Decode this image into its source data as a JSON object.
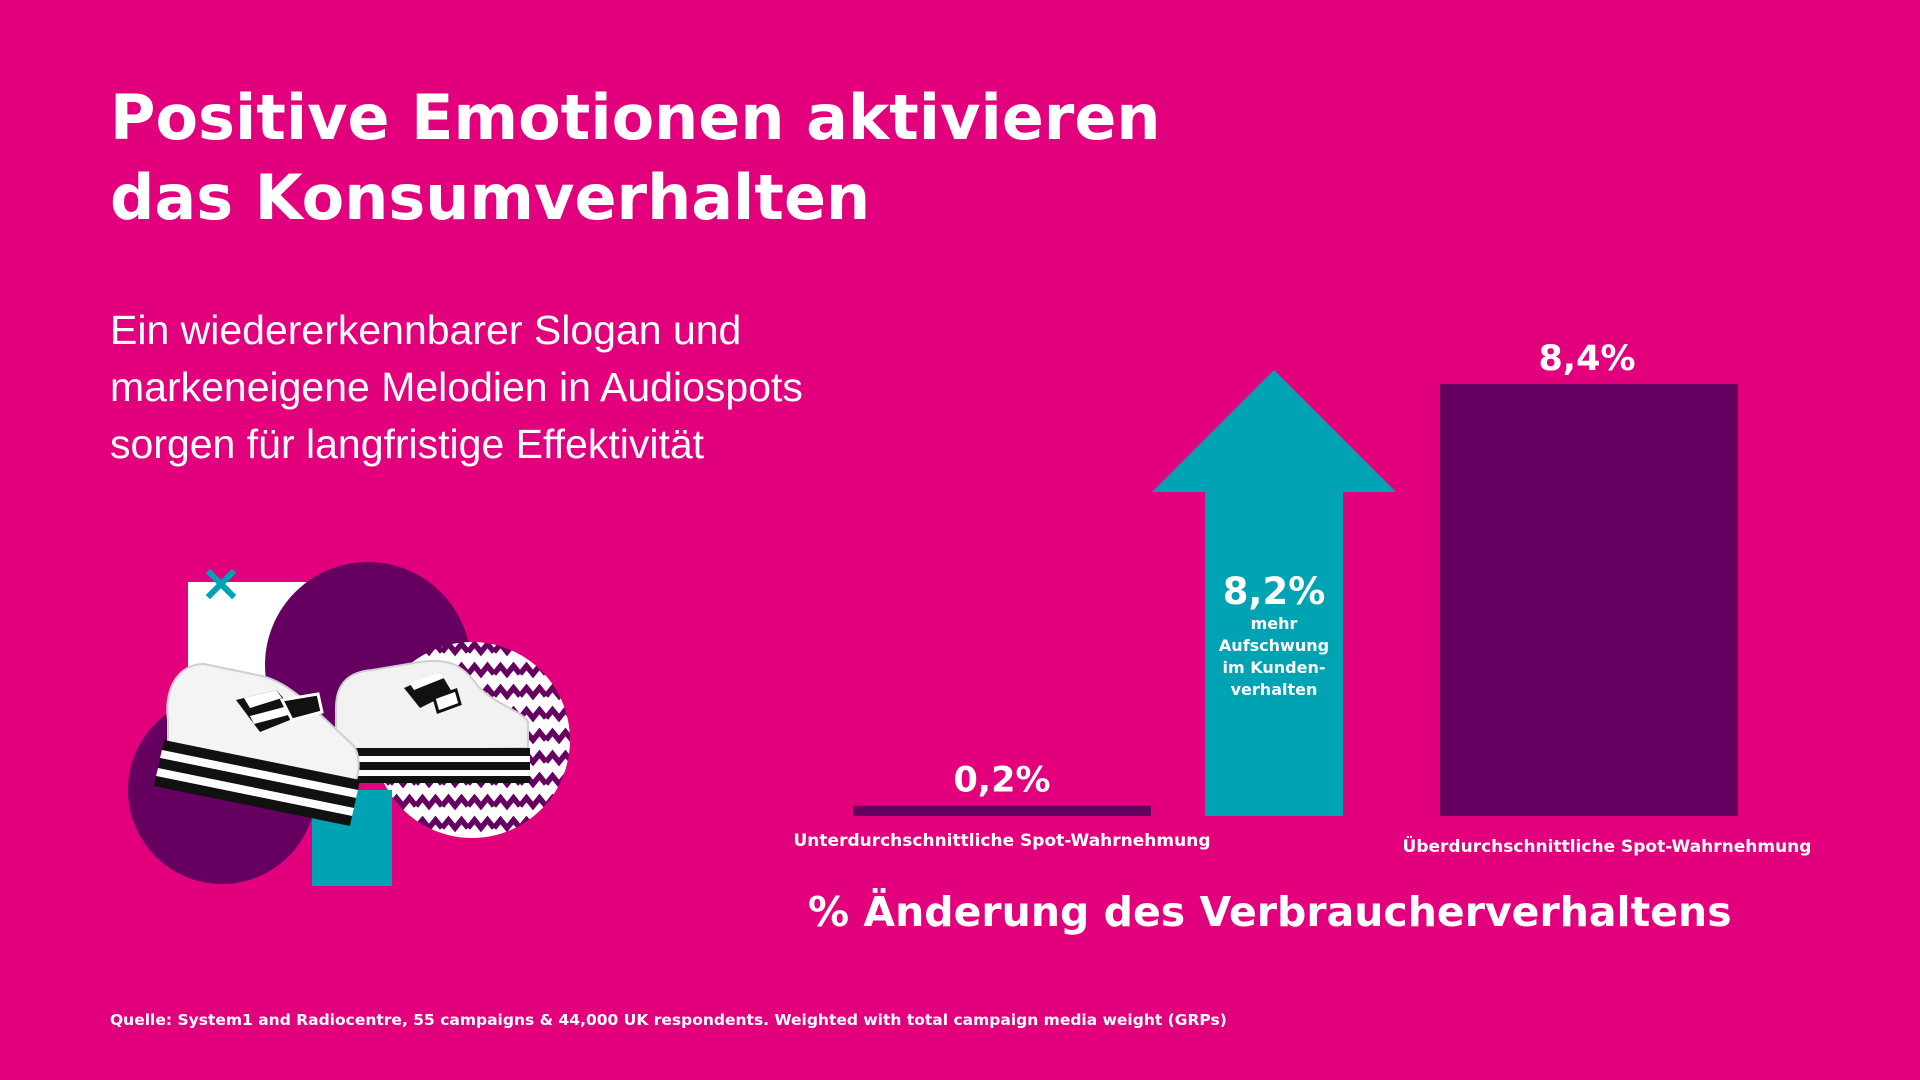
{
  "header": {
    "title_line1": "Positive Emotionen aktivieren",
    "title_line2": "das Konsumverhalten",
    "subtitle_line1": "Ein wiedererkennbarer Slogan und",
    "subtitle_line2": "markeneigene Melodien in Audiospots",
    "subtitle_line3": "sorgen für langfristige Effektivität"
  },
  "source": "Quelle: System1 and Radiocentre, 55 campaigns & 44,000 UK respondents. Weighted with total campaign media weight (GRPs)",
  "colors": {
    "background": "#e3007d",
    "bar": "#650061",
    "arrow": "#00a3b4",
    "text": "#ffffff"
  },
  "chart_data": {
    "type": "bar",
    "categories": [
      "Unterdurchschnittliche Spot-Wahrnehmung",
      "Überdurchschnittliche Spot-Wahrnehmung"
    ],
    "values": [
      0.2,
      8.4
    ],
    "value_labels": [
      "0,2%",
      "8,4%"
    ],
    "xlabel": "% Änderung des Verbraucherverhaltens",
    "ylabel": "",
    "ylim": [
      0,
      8.4
    ],
    "annotation": {
      "type": "up-arrow",
      "value": 8.2,
      "value_label": "8,2%",
      "text_lines": [
        "mehr",
        "Aufschwung",
        "im Kunden-",
        "verhalten"
      ]
    }
  },
  "illustration": {
    "icon": "sneakers-illustration",
    "decor_icon": "x-mark-icon"
  }
}
